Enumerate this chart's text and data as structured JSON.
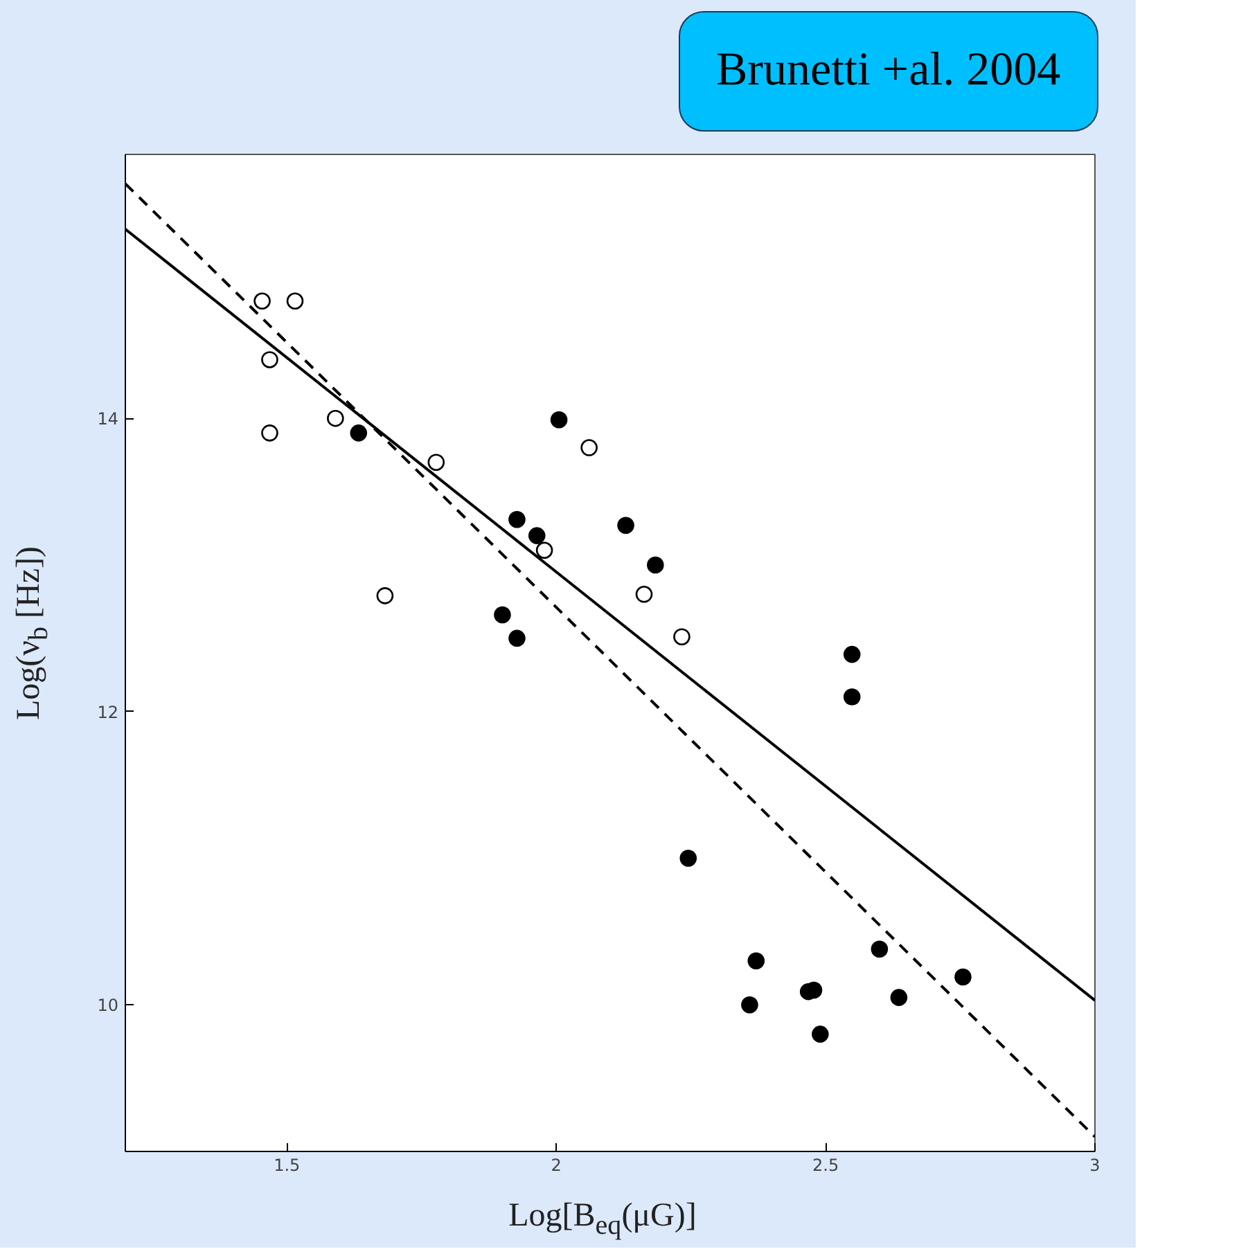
{
  "chart_data": {
    "type": "scatter",
    "xlabel": "Log[B$_{eq}$(μG)]",
    "ylabel": "Log(ν$_{b}$ [Hz])",
    "annotations": [
      "Brunetti +al. 2004"
    ],
    "xlim": [
      1.2,
      3
    ],
    "ylim": [
      9,
      15.8
    ],
    "xticks": [
      1.5,
      2,
      2.5,
      3
    ],
    "yticks": [
      10,
      12,
      14
    ],
    "grid": false,
    "series": [
      {
        "marker": "circle",
        "color": "#ffffff",
        "x": [
          1.454,
          1.515,
          1.468,
          1.468,
          1.59,
          1.777,
          1.682,
          1.978,
          2.061,
          2.163,
          2.233
        ],
        "values": [
          14.8,
          14.8,
          14.4,
          13.9,
          14.0,
          13.7,
          12.79,
          13.1,
          13.8,
          12.8,
          12.51
        ]
      },
      {
        "marker": "circle",
        "color": "#000000",
        "x": [
          1.633,
          2.005,
          1.927,
          1.964,
          1.9,
          1.927,
          2.129,
          2.184,
          2.549,
          2.549,
          2.245,
          2.371,
          2.359,
          2.468,
          2.478,
          2.49,
          2.6,
          2.636,
          2.755
        ],
        "values": [
          13.9,
          13.99,
          13.31,
          13.2,
          12.66,
          12.5,
          13.27,
          13.0,
          12.39,
          12.1,
          11.0,
          10.3,
          10.0,
          10.09,
          10.1,
          9.8,
          10.38,
          10.05,
          10.19
        ]
      },
      {
        "type": "line",
        "line_style": "solid",
        "color": "#000000",
        "x": [
          1.2,
          3
        ],
        "values": [
          15.29,
          10.03
        ]
      },
      {
        "type": "line",
        "line_style": "dashed",
        "color": "#000000",
        "x": [
          1.2,
          3
        ],
        "values": [
          15.6,
          9.1
        ]
      }
    ]
  }
}
